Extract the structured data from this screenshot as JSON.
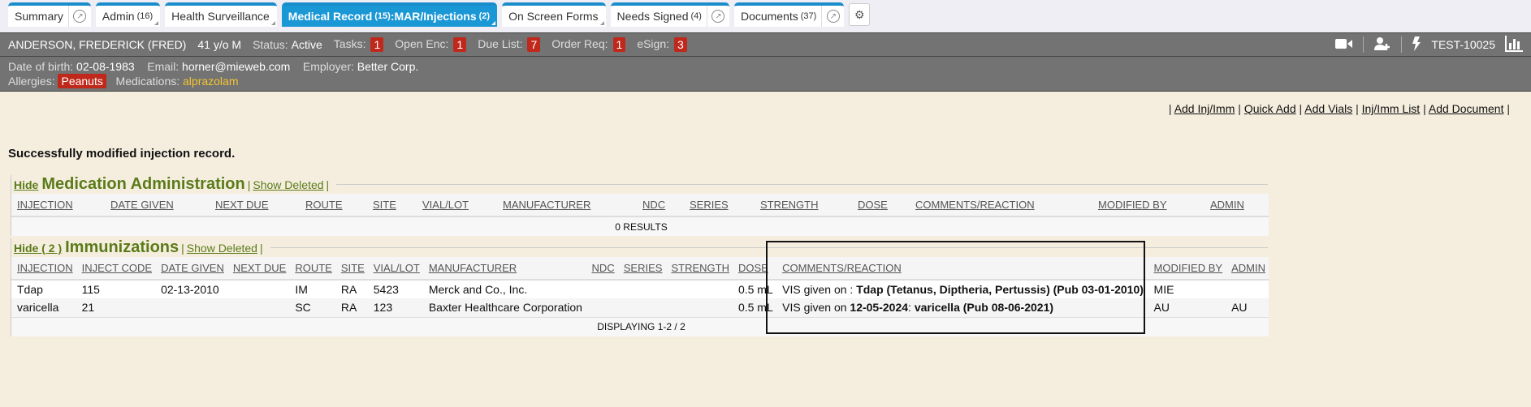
{
  "tabs": [
    {
      "label": "Summary",
      "count": "",
      "ext": true
    },
    {
      "label": "Admin",
      "count": "(16)"
    },
    {
      "label": "Health Surveillance",
      "count": ""
    },
    {
      "label": "Medical Record",
      "count": "(15)",
      "suffix": ":MAR/Injections",
      "suffix_count": "(2)",
      "active": true
    },
    {
      "label": "On Screen Forms",
      "count": ""
    },
    {
      "label": "Needs Signed",
      "count": "(4)",
      "ext": true
    },
    {
      "label": "Documents",
      "count": "(37)",
      "ext": true
    }
  ],
  "gear_icon": "gears-icon",
  "patient": {
    "name": "ANDERSON, FREDERICK (FRED)",
    "age": "41 y/o M",
    "status_label": "Status:",
    "status": "Active",
    "counters": [
      {
        "label": "Tasks:",
        "value": "1"
      },
      {
        "label": "Open Enc:",
        "value": "1"
      },
      {
        "label": "Due List:",
        "value": "7"
      },
      {
        "label": "Order Req:",
        "value": "1"
      },
      {
        "label": "eSign:",
        "value": "3"
      }
    ],
    "id": "TEST-10025",
    "dob_label": "Date of birth:",
    "dob": "02-08-1983",
    "email_label": "Email:",
    "email": "horner@mieweb.com",
    "employer_label": "Employer:",
    "employer": "Better Corp.",
    "allergies_label": "Allergies:",
    "allergies": "Peanuts",
    "medications_label": "Medications:",
    "medications": "alprazolam"
  },
  "links": [
    "Add Inj/Imm",
    "Quick Add",
    "Add Vials",
    "Inj/Imm List",
    "Add Document"
  ],
  "message": "Successfully modified injection record.",
  "med_admin": {
    "hide": "Hide",
    "title": "Medication Administration",
    "show_deleted": "Show Deleted",
    "columns": [
      "INJECTION",
      "DATE GIVEN",
      "NEXT DUE",
      "ROUTE",
      "SITE",
      "VIAL/LOT",
      "MANUFACTURER",
      "NDC",
      "SERIES",
      "STRENGTH",
      "DOSE",
      "COMMENTS/REACTION",
      "MODIFIED BY",
      "ADMIN"
    ],
    "footer": "0 RESULTS"
  },
  "immunizations": {
    "hide": "Hide ( 2 )",
    "title": "Immunizations",
    "show_deleted": "Show Deleted",
    "columns": [
      "INJECTION",
      "INJECT CODE",
      "DATE GIVEN",
      "NEXT DUE",
      "ROUTE",
      "SITE",
      "VIAL/LOT",
      "MANUFACTURER",
      "NDC",
      "SERIES",
      "STRENGTH",
      "DOSE",
      "COMMENTS/REACTION",
      "MODIFIED BY",
      "ADMIN"
    ],
    "rows": [
      {
        "injection": "Tdap",
        "code": "115",
        "date_given": "02-13-2010",
        "next_due": "",
        "route": "IM",
        "site": "RA",
        "vial_lot": "5423",
        "manufacturer": "Merck and Co., Inc.",
        "ndc": "",
        "series": "",
        "strength": "",
        "dose": "0.5 mL",
        "comment_prefix": "VIS given on : ",
        "comment_date": "",
        "comment_sep": "",
        "comment_bold": "Tdap (Tetanus, Diptheria, Pertussis) (Pub 03-01-2010)",
        "modified_by": "MIE",
        "admin": ""
      },
      {
        "injection": "varicella",
        "code": "21",
        "date_given": "",
        "next_due": "",
        "route": "SC",
        "site": "RA",
        "vial_lot": "123",
        "manufacturer": "Baxter Healthcare Corporation",
        "ndc": "",
        "series": "",
        "strength": "",
        "dose": "0.5 mL",
        "comment_prefix": "VIS given on ",
        "comment_date": "12-05-2024",
        "comment_sep": ": ",
        "comment_bold": "varicella (Pub 08-06-2021)",
        "modified_by": "AU",
        "admin": "AU"
      }
    ],
    "footer": "DISPLAYING 1-2 / 2"
  }
}
